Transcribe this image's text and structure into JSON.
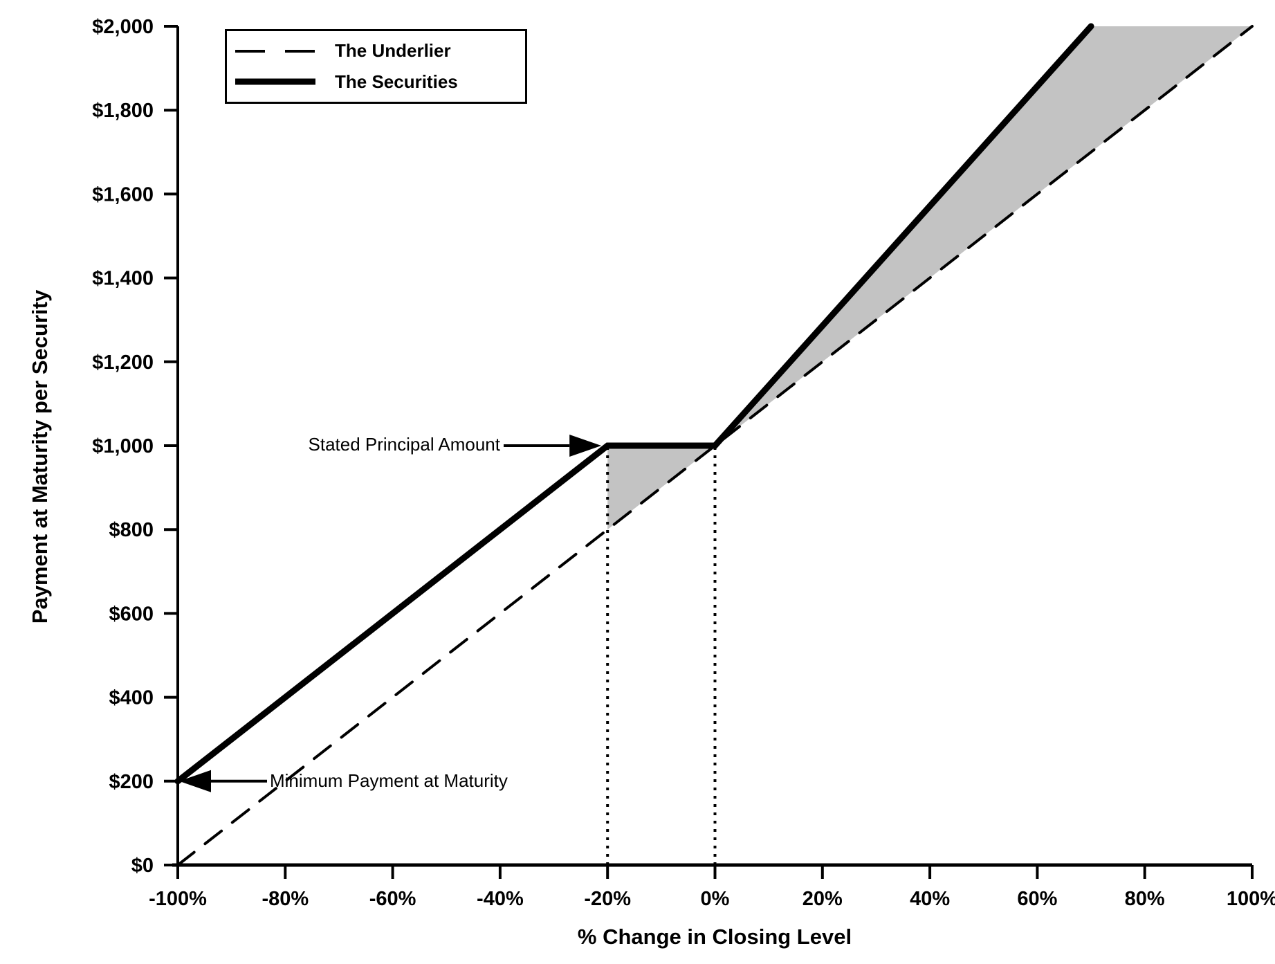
{
  "chart_data": {
    "type": "line",
    "xlabel": "% Change in Closing Level",
    "ylabel": "Payment at Maturity per Security",
    "xlim": [
      -100,
      100
    ],
    "ylim": [
      0,
      2000
    ],
    "grid": false,
    "background_color": "#ffffff",
    "line_color": "#000000",
    "shade_color": "#c3c3c3",
    "x_ticks": [
      -100,
      -80,
      -60,
      -40,
      -20,
      0,
      20,
      40,
      60,
      80,
      100
    ],
    "x_tick_labels": [
      "-100%",
      "-80%",
      "-60%",
      "-40%",
      "-20%",
      "0%",
      "20%",
      "40%",
      "60%",
      "80%",
      "100%"
    ],
    "y_ticks": [
      0,
      200,
      400,
      600,
      800,
      1000,
      1200,
      1400,
      1600,
      1800,
      2000
    ],
    "y_tick_labels": [
      "$0",
      "$200",
      "$400",
      "$600",
      "$800",
      "$1,000",
      "$1,200",
      "$1,400",
      "$1,600",
      "$1,800",
      "$2,000"
    ],
    "series": [
      {
        "name": "The Underlier",
        "style": "dashed",
        "points": [
          [
            -100,
            0
          ],
          [
            100,
            2000
          ]
        ]
      },
      {
        "name": "The Securities",
        "style": "solid",
        "points": [
          [
            -100,
            200
          ],
          [
            -20,
            1000
          ],
          [
            0,
            1000
          ],
          [
            70,
            2000
          ]
        ]
      }
    ],
    "shaded_regions": [
      {
        "points": [
          [
            -20,
            1000
          ],
          [
            0,
            1000
          ],
          [
            -20,
            800
          ]
        ]
      },
      {
        "points": [
          [
            0,
            1000
          ],
          [
            70,
            2000
          ],
          [
            100,
            2000
          ]
        ]
      }
    ],
    "reference_lines": [
      {
        "style": "dotted",
        "x": -20,
        "y_from": 0,
        "y_to": 1000
      },
      {
        "style": "dotted",
        "x": 0,
        "y_from": 0,
        "y_to": 1000
      }
    ],
    "annotations": [
      {
        "text": "Stated Principal Amount",
        "arrow_to": [
          -20,
          1000
        ],
        "arrow_direction": "right"
      },
      {
        "text": "Minimum Payment at Maturity",
        "arrow_to": [
          -100,
          200
        ],
        "arrow_direction": "left"
      }
    ],
    "legend": {
      "position": "top-left",
      "entries": [
        {
          "label": "The Underlier",
          "style": "dashed"
        },
        {
          "label": "The Securities",
          "style": "solid"
        }
      ]
    }
  }
}
